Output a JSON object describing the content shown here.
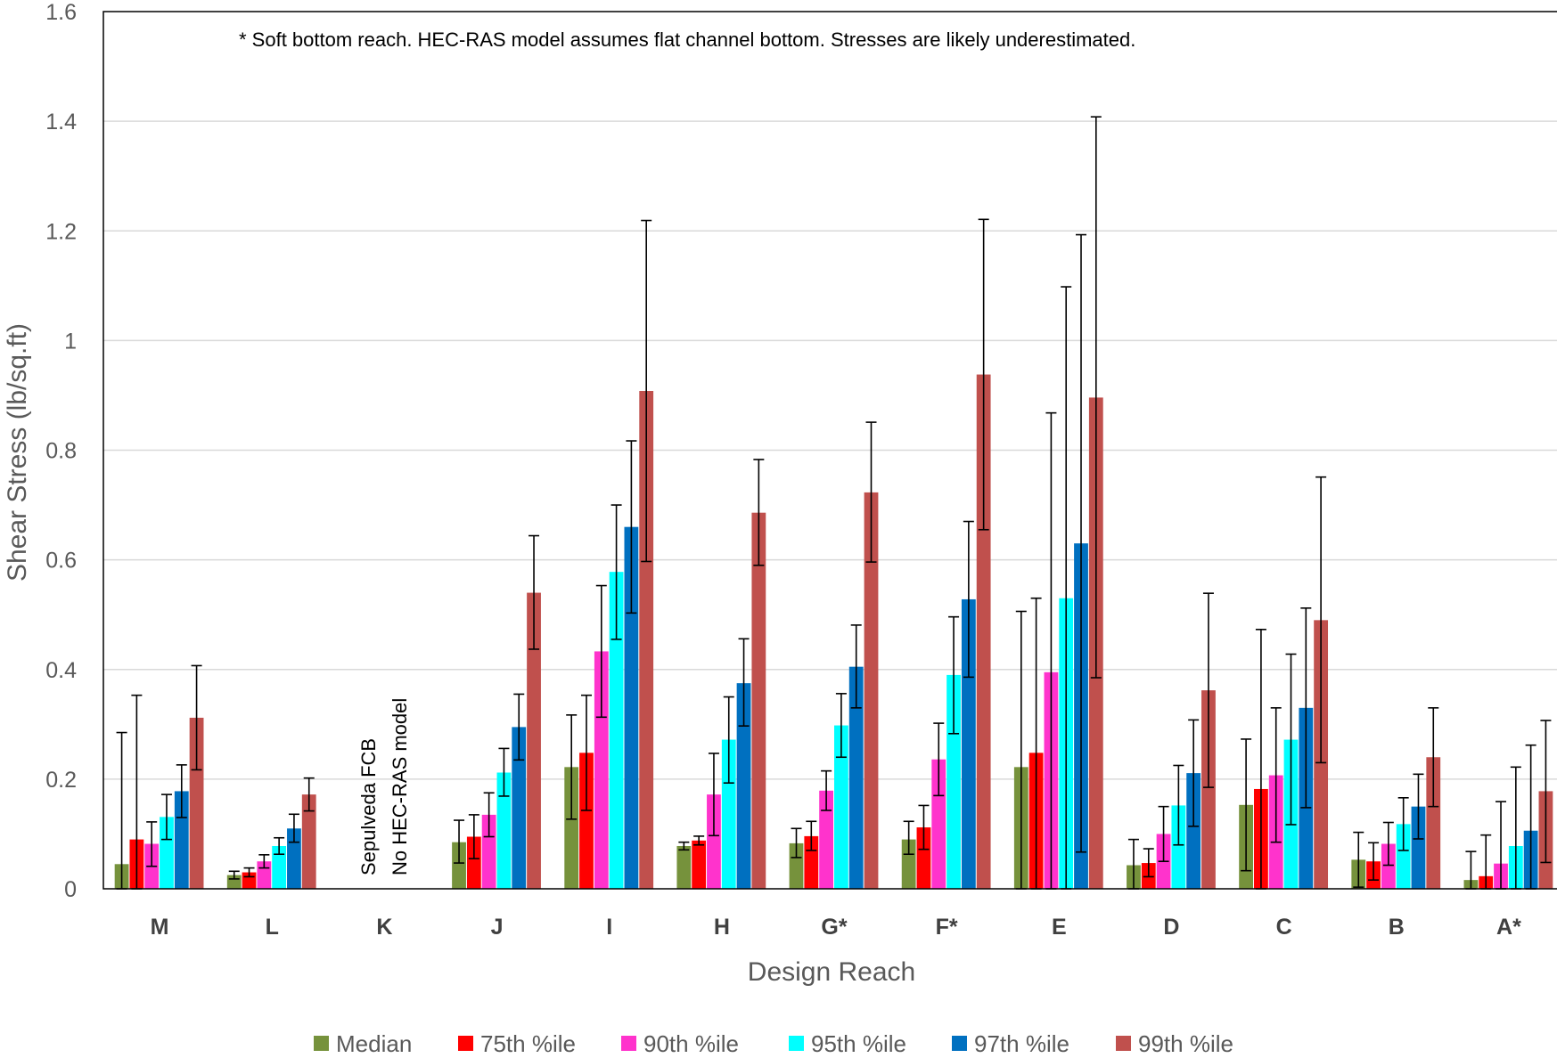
{
  "chart_data": {
    "type": "bar",
    "title": "",
    "xlabel": "Design Reach",
    "ylabel": "Shear Stress (lb/sq.ft)",
    "ylim": [
      0,
      1.6
    ],
    "yticks": [
      0,
      0.2,
      0.4,
      0.6,
      0.8,
      1,
      1.2,
      1.4,
      1.6
    ],
    "ytick_labels": [
      "0",
      "0.2",
      "0.4",
      "0.6",
      "0.8",
      "1",
      "1.2",
      "1.4",
      "1.6"
    ],
    "grid": "horizontal",
    "legend_position": "bottom",
    "categories": [
      "M",
      "L",
      "K",
      "J",
      "I",
      "H",
      "G*",
      "F*",
      "E",
      "D",
      "C",
      "B",
      "A*"
    ],
    "annotation": "* Soft bottom reach. HEC-RAS model assumes flat channel bottom.  Stresses are likely underestimated.",
    "k_note": [
      "Sepulveda FCB",
      "No HEC-RAS model"
    ],
    "series": [
      {
        "name": "Median",
        "color": "#76923C",
        "values": [
          0.045,
          0.025,
          null,
          0.085,
          0.222,
          0.078,
          0.083,
          0.09,
          0.222,
          0.043,
          0.153,
          0.053,
          0.016
        ],
        "error_low": [
          0.0,
          0.018,
          null,
          0.047,
          0.127,
          0.071,
          0.057,
          0.063,
          0.0,
          0.0,
          0.033,
          0.003,
          0.0
        ],
        "error_high": [
          0.285,
          0.032,
          null,
          0.125,
          0.317,
          0.085,
          0.11,
          0.123,
          0.506,
          0.09,
          0.273,
          0.103,
          0.068
        ]
      },
      {
        "name": "75th %ile",
        "color": "#FF0000",
        "values": [
          0.09,
          0.03,
          null,
          0.095,
          0.248,
          0.088,
          0.096,
          0.112,
          0.248,
          0.047,
          0.182,
          0.05,
          0.023
        ],
        "error_low": [
          0.0,
          0.022,
          null,
          0.055,
          0.143,
          0.08,
          0.07,
          0.072,
          0.0,
          0.022,
          0.0,
          0.016,
          0.0
        ],
        "error_high": [
          0.353,
          0.038,
          null,
          0.135,
          0.353,
          0.096,
          0.123,
          0.152,
          0.53,
          0.073,
          0.473,
          0.084,
          0.098
        ]
      },
      {
        "name": "90th %ile",
        "color": "#FF33CC",
        "values": [
          0.082,
          0.05,
          null,
          0.135,
          0.433,
          0.172,
          0.179,
          0.236,
          0.395,
          0.1,
          0.207,
          0.082,
          0.046
        ],
        "error_low": [
          0.041,
          0.038,
          null,
          0.095,
          0.313,
          0.097,
          0.143,
          0.17,
          0.0,
          0.05,
          0.085,
          0.043,
          0.0
        ],
        "error_high": [
          0.122,
          0.062,
          null,
          0.175,
          0.553,
          0.247,
          0.215,
          0.302,
          0.868,
          0.15,
          0.33,
          0.121,
          0.159
        ]
      },
      {
        "name": "95th %ile",
        "color": "#00FFFF",
        "values": [
          0.131,
          0.078,
          null,
          0.212,
          0.578,
          0.272,
          0.298,
          0.39,
          0.53,
          0.152,
          0.272,
          0.118,
          0.078
        ],
        "error_low": [
          0.09,
          0.063,
          null,
          0.169,
          0.455,
          0.193,
          0.24,
          0.283,
          0.0,
          0.08,
          0.117,
          0.07,
          0.0
        ],
        "error_high": [
          0.172,
          0.093,
          null,
          0.256,
          0.7,
          0.35,
          0.356,
          0.496,
          1.098,
          0.225,
          0.428,
          0.166,
          0.222
        ]
      },
      {
        "name": "97th %ile",
        "color": "#0070C0",
        "values": [
          0.178,
          0.11,
          null,
          0.295,
          0.66,
          0.375,
          0.405,
          0.528,
          0.63,
          0.211,
          0.33,
          0.15,
          0.106
        ],
        "error_low": [
          0.13,
          0.085,
          null,
          0.235,
          0.503,
          0.297,
          0.33,
          0.386,
          0.067,
          0.114,
          0.148,
          0.091,
          0.0
        ],
        "error_high": [
          0.226,
          0.136,
          null,
          0.355,
          0.817,
          0.456,
          0.481,
          0.67,
          1.193,
          0.308,
          0.512,
          0.209,
          0.262
        ]
      },
      {
        "name": "99th %ile",
        "color": "#C0504D",
        "values": [
          0.312,
          0.172,
          null,
          0.54,
          0.908,
          0.686,
          0.723,
          0.938,
          0.896,
          0.362,
          0.49,
          0.24,
          0.178
        ],
        "error_low": [
          0.217,
          0.142,
          null,
          0.437,
          0.597,
          0.59,
          0.596,
          0.655,
          0.385,
          0.185,
          0.23,
          0.15,
          0.048
        ],
        "error_high": [
          0.407,
          0.202,
          null,
          0.644,
          1.219,
          0.783,
          0.851,
          1.221,
          1.408,
          0.539,
          0.751,
          0.33,
          0.307
        ]
      }
    ]
  }
}
